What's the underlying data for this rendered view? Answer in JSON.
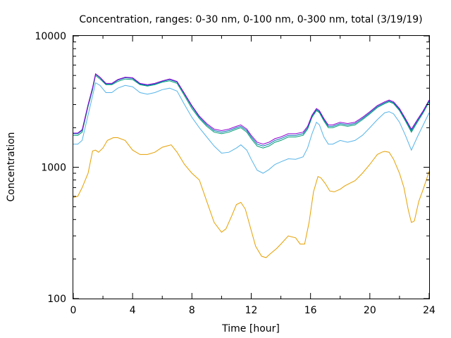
{
  "chart_data": {
    "type": "line",
    "title": "Concentration, ranges: 0-30 nm, 0-100 nm, 0-300 nm, total (3/19/19)",
    "xlabel": "Time [hour]",
    "ylabel": "Concentration",
    "xlim": [
      0,
      24
    ],
    "ylim": [
      100,
      10000
    ],
    "yscale": "log",
    "grid": false,
    "legend": "none",
    "xticks": [
      0,
      4,
      8,
      12,
      16,
      20,
      24
    ],
    "xtick_labels": [
      "0",
      "4",
      "8",
      "12",
      "16",
      "20",
      "24"
    ],
    "yticks": [
      100,
      1000,
      10000
    ],
    "ytick_labels": [
      "100",
      "1000",
      "10000"
    ],
    "series": [
      {
        "color": "#e69f00",
        "x": [
          0,
          0.3,
          0.6,
          1.0,
          1.3,
          1.5,
          1.7,
          2.0,
          2.3,
          2.7,
          3.0,
          3.5,
          4.0,
          4.5,
          5.0,
          5.5,
          6.0,
          6.3,
          6.6,
          7.0,
          7.5,
          8.0,
          8.5,
          9.0,
          9.5,
          10.0,
          10.3,
          10.7,
          11.0,
          11.3,
          11.6,
          12.0,
          12.3,
          12.7,
          13.0,
          13.3,
          13.7,
          14.0,
          14.5,
          15.0,
          15.3,
          15.6,
          15.9,
          16.2,
          16.5,
          16.7,
          17.0,
          17.3,
          17.6,
          18.0,
          18.3,
          18.7,
          19.0,
          19.5,
          20.0,
          20.5,
          20.8,
          21.0,
          21.3,
          21.6,
          22.0,
          22.3,
          22.6,
          22.8,
          23.0,
          23.3,
          23.6,
          24.0
        ],
        "y": [
          590,
          600,
          700,
          900,
          1330,
          1350,
          1300,
          1400,
          1600,
          1680,
          1680,
          1600,
          1350,
          1250,
          1250,
          1300,
          1420,
          1450,
          1480,
          1300,
          1050,
          900,
          800,
          550,
          380,
          320,
          340,
          430,
          520,
          540,
          480,
          330,
          250,
          210,
          205,
          220,
          240,
          260,
          300,
          290,
          260,
          260,
          380,
          650,
          850,
          830,
          750,
          660,
          650,
          680,
          720,
          760,
          790,
          900,
          1050,
          1250,
          1300,
          1320,
          1300,
          1150,
          900,
          700,
          470,
          380,
          390,
          550,
          680,
          930
        ]
      },
      {
        "color": "#56b4e9",
        "x": [
          0,
          0.3,
          0.6,
          1.0,
          1.3,
          1.5,
          1.8,
          2.2,
          2.6,
          3.0,
          3.5,
          4.0,
          4.5,
          5.0,
          5.5,
          6.0,
          6.5,
          7.0,
          7.5,
          8.0,
          8.5,
          9.0,
          9.5,
          10.0,
          10.5,
          11.0,
          11.3,
          11.7,
          12.0,
          12.4,
          12.8,
          13.2,
          13.6,
          14.0,
          14.5,
          15.0,
          15.5,
          15.8,
          16.1,
          16.4,
          16.6,
          16.9,
          17.2,
          17.5,
          18.0,
          18.5,
          19.0,
          19.5,
          20.0,
          20.5,
          21.0,
          21.3,
          21.6,
          22.0,
          22.4,
          22.8,
          23.2,
          23.6,
          24.0
        ],
        "y": [
          1500,
          1500,
          1600,
          2500,
          3500,
          4400,
          4200,
          3700,
          3700,
          4000,
          4200,
          4100,
          3700,
          3600,
          3700,
          3900,
          4000,
          3800,
          3000,
          2400,
          2000,
          1700,
          1450,
          1280,
          1300,
          1400,
          1480,
          1350,
          1150,
          950,
          900,
          960,
          1050,
          1100,
          1160,
          1150,
          1200,
          1400,
          1800,
          2200,
          2100,
          1700,
          1500,
          1500,
          1600,
          1550,
          1600,
          1750,
          2000,
          2300,
          2600,
          2650,
          2550,
          2200,
          1750,
          1350,
          1700,
          2100,
          2600
        ]
      },
      {
        "color": "#009e73",
        "x": [
          0,
          0.3,
          0.6,
          1.0,
          1.3,
          1.5,
          1.8,
          2.2,
          2.6,
          3.0,
          3.5,
          4.0,
          4.5,
          5.0,
          5.5,
          6.0,
          6.5,
          7.0,
          7.5,
          8.0,
          8.5,
          9.0,
          9.5,
          10.0,
          10.5,
          11.0,
          11.3,
          11.7,
          12.0,
          12.4,
          12.8,
          13.2,
          13.6,
          14.0,
          14.5,
          15.0,
          15.5,
          15.8,
          16.1,
          16.4,
          16.6,
          16.9,
          17.2,
          17.5,
          18.0,
          18.5,
          19.0,
          19.5,
          20.0,
          20.5,
          21.0,
          21.3,
          21.6,
          22.0,
          22.4,
          22.8,
          23.2,
          23.6,
          24.0
        ],
        "y": [
          1750,
          1750,
          1850,
          2900,
          3900,
          5000,
          4700,
          4250,
          4250,
          4500,
          4700,
          4650,
          4250,
          4150,
          4250,
          4450,
          4550,
          4350,
          3500,
          2800,
          2350,
          2050,
          1850,
          1800,
          1850,
          1950,
          2000,
          1850,
          1650,
          1450,
          1400,
          1450,
          1550,
          1600,
          1700,
          1700,
          1750,
          1950,
          2400,
          2700,
          2600,
          2250,
          2000,
          2000,
          2100,
          2050,
          2100,
          2300,
          2550,
          2850,
          3050,
          3150,
          3050,
          2700,
          2250,
          1850,
          2200,
          2600,
          3150
        ]
      },
      {
        "color": "#0072b2",
        "x": [
          0,
          0.3,
          0.6,
          1.0,
          1.3,
          1.5,
          1.8,
          2.2,
          2.6,
          3.0,
          3.5,
          4.0,
          4.5,
          5.0,
          5.5,
          6.0,
          6.5,
          7.0,
          7.5,
          8.0,
          8.5,
          9.0,
          9.5,
          10.0,
          10.5,
          11.0,
          11.3,
          11.7,
          12.0,
          12.4,
          12.8,
          13.2,
          13.6,
          14.0,
          14.5,
          15.0,
          15.5,
          15.8,
          16.1,
          16.4,
          16.6,
          16.9,
          17.2,
          17.5,
          18.0,
          18.5,
          19.0,
          19.5,
          20.0,
          20.5,
          21.0,
          21.3,
          21.6,
          22.0,
          22.4,
          22.8,
          23.2,
          23.6,
          24.0
        ],
        "y": [
          1800,
          1800,
          1900,
          2950,
          4000,
          5100,
          4800,
          4300,
          4300,
          4600,
          4800,
          4750,
          4300,
          4200,
          4300,
          4500,
          4650,
          4450,
          3600,
          2900,
          2400,
          2100,
          1900,
          1850,
          1900,
          2000,
          2050,
          1900,
          1700,
          1500,
          1450,
          1500,
          1600,
          1650,
          1750,
          1750,
          1800,
          2000,
          2450,
          2750,
          2650,
          2300,
          2050,
          2050,
          2150,
          2100,
          2150,
          2350,
          2600,
          2900,
          3100,
          3200,
          3100,
          2750,
          2300,
          1900,
          2250,
          2650,
          3200
        ]
      },
      {
        "color": "#9400d3",
        "x": [
          0,
          0.3,
          0.6,
          1.0,
          1.3,
          1.5,
          1.8,
          2.2,
          2.6,
          3.0,
          3.5,
          4.0,
          4.5,
          5.0,
          5.5,
          6.0,
          6.5,
          7.0,
          7.5,
          8.0,
          8.5,
          9.0,
          9.5,
          10.0,
          10.5,
          11.0,
          11.3,
          11.7,
          12.0,
          12.4,
          12.8,
          13.2,
          13.6,
          14.0,
          14.5,
          15.0,
          15.5,
          15.8,
          16.1,
          16.4,
          16.6,
          16.9,
          17.2,
          17.5,
          18.0,
          18.5,
          19.0,
          19.5,
          20.0,
          20.5,
          21.0,
          21.3,
          21.6,
          22.0,
          22.4,
          22.8,
          23.2,
          23.6,
          24.0
        ],
        "y": [
          1820,
          1820,
          1930,
          3000,
          4050,
          5150,
          4850,
          4350,
          4350,
          4650,
          4850,
          4800,
          4350,
          4250,
          4350,
          4550,
          4700,
          4500,
          3650,
          2950,
          2450,
          2150,
          1950,
          1900,
          1950,
          2050,
          2100,
          1950,
          1750,
          1550,
          1500,
          1550,
          1650,
          1700,
          1800,
          1800,
          1850,
          2050,
          2500,
          2800,
          2700,
          2350,
          2100,
          2100,
          2200,
          2150,
          2200,
          2400,
          2650,
          2950,
          3150,
          3250,
          3150,
          2800,
          2350,
          1950,
          2300,
          2700,
          3250
        ]
      }
    ]
  }
}
